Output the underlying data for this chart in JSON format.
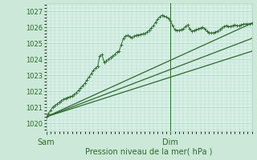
{
  "title": "",
  "xlabel": "Pression niveau de la mer( hPa )",
  "ylabel": "",
  "bg_color": "#cce8d8",
  "plot_bg_color": "#d8f0e8",
  "grid_color": "#b0d8c0",
  "line_color": "#2d6a2d",
  "ylim": [
    1019.5,
    1027.5
  ],
  "xlim": [
    0,
    48
  ],
  "yticks": [
    1020,
    1021,
    1022,
    1023,
    1024,
    1025,
    1026,
    1027
  ],
  "xtick_labels": [
    "Sam",
    "Dim"
  ],
  "xtick_positions": [
    0,
    29
  ],
  "vline_x": 29,
  "detailed_line": [
    [
      0,
      1020.4
    ],
    [
      0.5,
      1020.6
    ],
    [
      1,
      1020.8
    ],
    [
      1.5,
      1021.0
    ],
    [
      2,
      1021.1
    ],
    [
      2.5,
      1021.2
    ],
    [
      3,
      1021.3
    ],
    [
      3.5,
      1021.4
    ],
    [
      4,
      1021.5
    ],
    [
      4.5,
      1021.55
    ],
    [
      5,
      1021.6
    ],
    [
      5.5,
      1021.65
    ],
    [
      6,
      1021.7
    ],
    [
      6.5,
      1021.8
    ],
    [
      7,
      1021.9
    ],
    [
      7.5,
      1022.05
    ],
    [
      8,
      1022.2
    ],
    [
      8.5,
      1022.35
    ],
    [
      9,
      1022.5
    ],
    [
      9.5,
      1022.7
    ],
    [
      10,
      1022.9
    ],
    [
      10.5,
      1023.1
    ],
    [
      11,
      1023.3
    ],
    [
      11.5,
      1023.45
    ],
    [
      12,
      1023.55
    ],
    [
      12.5,
      1024.2
    ],
    [
      13,
      1024.3
    ],
    [
      13.5,
      1023.8
    ],
    [
      14,
      1023.9
    ],
    [
      14.5,
      1024.0
    ],
    [
      15,
      1024.1
    ],
    [
      15.5,
      1024.2
    ],
    [
      16,
      1024.3
    ],
    [
      16.5,
      1024.45
    ],
    [
      17,
      1024.5
    ],
    [
      17.5,
      1024.9
    ],
    [
      18,
      1025.3
    ],
    [
      18.5,
      1025.45
    ],
    [
      19,
      1025.5
    ],
    [
      19.5,
      1025.42
    ],
    [
      20,
      1025.35
    ],
    [
      20.5,
      1025.45
    ],
    [
      21,
      1025.5
    ],
    [
      21.5,
      1025.52
    ],
    [
      22,
      1025.55
    ],
    [
      22.5,
      1025.58
    ],
    [
      23,
      1025.6
    ],
    [
      23.5,
      1025.7
    ],
    [
      24,
      1025.8
    ],
    [
      24.5,
      1025.95
    ],
    [
      25,
      1026.1
    ],
    [
      25.5,
      1026.3
    ],
    [
      26,
      1026.5
    ],
    [
      26.5,
      1026.65
    ],
    [
      27,
      1026.75
    ],
    [
      27.5,
      1026.7
    ],
    [
      28,
      1026.65
    ],
    [
      28.5,
      1026.55
    ],
    [
      29,
      1026.4
    ],
    [
      29.5,
      1026.1
    ],
    [
      30,
      1025.85
    ],
    [
      30.5,
      1025.82
    ],
    [
      31,
      1025.8
    ],
    [
      31.5,
      1025.85
    ],
    [
      32,
      1025.9
    ],
    [
      32.5,
      1026.05
    ],
    [
      33,
      1026.15
    ],
    [
      33.5,
      1025.9
    ],
    [
      34,
      1025.75
    ],
    [
      34.5,
      1025.8
    ],
    [
      35,
      1025.85
    ],
    [
      35.5,
      1025.9
    ],
    [
      36,
      1025.95
    ],
    [
      36.5,
      1026.0
    ],
    [
      37,
      1025.9
    ],
    [
      37.5,
      1025.75
    ],
    [
      38,
      1025.65
    ],
    [
      38.5,
      1025.65
    ],
    [
      39,
      1025.65
    ],
    [
      39.5,
      1025.7
    ],
    [
      40,
      1025.75
    ],
    [
      40.5,
      1025.85
    ],
    [
      41,
      1025.95
    ],
    [
      41.5,
      1026.05
    ],
    [
      42,
      1026.1
    ],
    [
      42.5,
      1026.05
    ],
    [
      43,
      1026.05
    ],
    [
      43.5,
      1026.1
    ],
    [
      44,
      1026.15
    ],
    [
      44.5,
      1026.1
    ],
    [
      45,
      1026.1
    ],
    [
      45.5,
      1026.15
    ],
    [
      46,
      1026.2
    ],
    [
      46.5,
      1026.2
    ],
    [
      47,
      1026.2
    ],
    [
      47.5,
      1026.22
    ],
    [
      48,
      1026.25
    ]
  ],
  "trend_lines": [
    [
      [
        0,
        1020.4
      ],
      [
        48,
        1026.25
      ]
    ],
    [
      [
        0,
        1020.4
      ],
      [
        48,
        1025.3
      ]
    ],
    [
      [
        0,
        1020.4
      ],
      [
        48,
        1024.5
      ]
    ]
  ]
}
